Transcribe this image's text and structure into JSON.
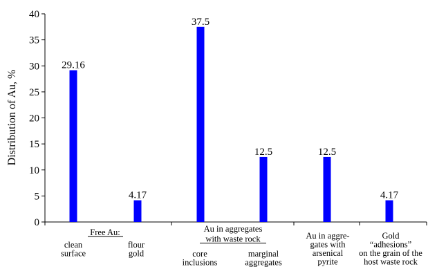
{
  "chart_data": {
    "type": "bar",
    "ylabel": "Distribution of  Au, %",
    "ylim": [
      0,
      40
    ],
    "yticks": [
      0,
      5,
      10,
      15,
      20,
      25,
      30,
      35,
      40
    ],
    "grid": false,
    "bar_color": "#0000ff",
    "values": [
      29.16,
      4.17,
      37.5,
      12.5,
      12.5,
      4.17
    ],
    "data_labels": [
      "29.16",
      "4.17",
      "37.5",
      "12.5",
      "12.5",
      "4.17"
    ],
    "categories": [
      [
        "clean",
        "surface"
      ],
      [
        "flour",
        "gold"
      ],
      [
        "core",
        "inclusions"
      ],
      [
        "marginal",
        "aggregates"
      ],
      [
        "Au in aggre-",
        "gates with",
        "arsenical",
        "pyrite"
      ],
      [
        "Gold",
        "“adhesions”",
        "on the grain of the",
        "host waste rock"
      ]
    ],
    "group_labels": [
      [
        "Free Au:"
      ],
      [
        "Au in aggregates",
        "with waste rock"
      ]
    ]
  }
}
